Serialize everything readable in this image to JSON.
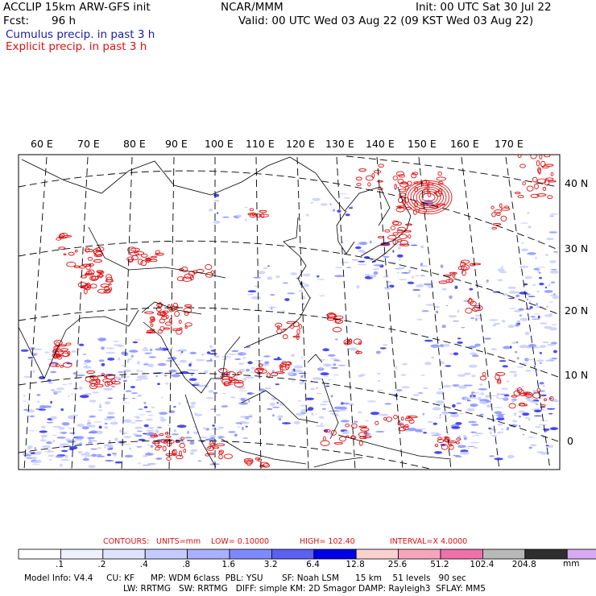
{
  "header": {
    "model_line": "ACCLIP 15km ARW-GFS init",
    "center": "NCAR/MMM",
    "init": "Init: 00 UTC Sat 30 Jul 22",
    "fcst_label": "Fcst:",
    "fcst_value": "96 h",
    "valid": "Valid: 00 UTC Wed 03 Aug 22 (09 KST Wed 03 Aug 22)",
    "legend_cumulus": "Cumulus precip. in past 3 h",
    "legend_explicit": "Explicit precip. in past 3 h"
  },
  "map": {
    "lon_labels": [
      "60 E",
      "70 E",
      "80 E",
      "90 E",
      "100 E",
      "110 E",
      "120 E",
      "130 E",
      "140 E",
      "150 E",
      "160 E",
      "170 E"
    ],
    "lat_labels": [
      "40 N",
      "30 N",
      "20 N",
      "10 N",
      "0"
    ],
    "colors": {
      "cumulus": "#2a2aee",
      "explicit": "#dd1111",
      "coast": "#000000",
      "grid": "#000000"
    }
  },
  "contours": {
    "label": "CONTOURS:",
    "units": "UNITS=mm",
    "low": "LOW= 0.10000",
    "high": "HIGH= 102.40",
    "interval": "INTERVAL=X 4.0000"
  },
  "colorbar": {
    "colors": [
      "#ffffff",
      "#eef0ff",
      "#dfe3ff",
      "#c4cbff",
      "#a8b0ff",
      "#8088ff",
      "#5a60f2",
      "#0000e8",
      "#fbd0d0",
      "#f7a5bd",
      "#ef70aa",
      "#b8b8b8",
      "#2e2e2e",
      "#d7aaf2"
    ],
    "ticks": [
      ".1",
      ".2",
      ".4",
      ".8",
      "1.6",
      "3.2",
      "6.4",
      "12.8",
      "25.6",
      "51.2",
      "102.4",
      "204.8"
    ],
    "units": "mm"
  },
  "model_info": {
    "line1": "Model Info: V4.4     CU: KF      MP: WDM 6class  PBL: YSU       SF: Noah LSM      15 km    51 levels   90 sec",
    "line2": "LW: RRTMG   SW: RRTMG   DIFF: simple KM: 2D Smagor DAMP: Rayleigh3  SFLAY: MM5"
  }
}
